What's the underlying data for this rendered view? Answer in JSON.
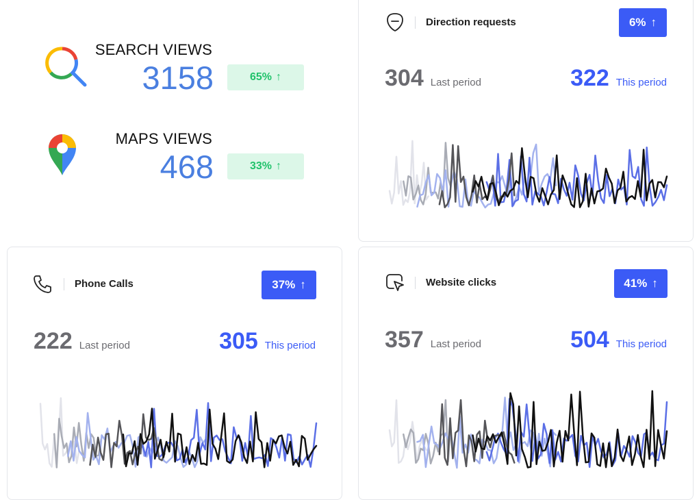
{
  "summary": {
    "search": {
      "label": "SEARCH VIEWS",
      "value": "3158",
      "change": "65%"
    },
    "maps": {
      "label": "MAPS VIEWS",
      "value": "468",
      "change": "33%"
    }
  },
  "cards": {
    "direction": {
      "title": "Direction requests",
      "badge": "6%",
      "last_value": "304",
      "last_label": "Last period",
      "this_value": "322",
      "this_label": "This period"
    },
    "phone": {
      "title": "Phone Calls",
      "badge": "37%",
      "last_value": "222",
      "last_label": "Last period",
      "this_value": "305",
      "this_label": "This period"
    },
    "website": {
      "title": "Website clicks",
      "badge": "41%",
      "last_value": "357",
      "last_label": "Last period",
      "this_value": "504",
      "this_label": "This period"
    }
  },
  "colors": {
    "accent": "#3b5bf6",
    "value_blue": "#4a7fe0",
    "positive_green": "#21c26b",
    "positive_bg": "#dcf7e8",
    "muted": "#6b6b70"
  },
  "icons": {
    "search": "google-search-icon",
    "maps": "google-maps-icon",
    "direction": "direction-shield-icon",
    "phone": "phone-icon",
    "website": "cursor-click-icon",
    "arrow": "arrow-up-icon"
  }
}
